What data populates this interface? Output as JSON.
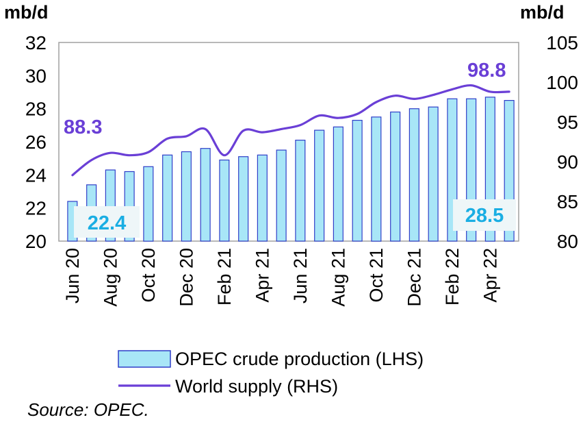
{
  "chart_data": {
    "type": "bar+line",
    "left_unit": "mb/d",
    "right_unit": "mb/d",
    "categories": [
      "Jun 20",
      "Jul 20",
      "Aug 20",
      "Sep 20",
      "Oct 20",
      "Nov 20",
      "Dec 20",
      "Jan 21",
      "Feb 21",
      "Mar 21",
      "Apr 21",
      "May 21",
      "Jun 21",
      "Jul 21",
      "Aug 21",
      "Sep 21",
      "Oct 21",
      "Nov 21",
      "Dec 21",
      "Jan 22",
      "Feb 22",
      "Mar 22",
      "Apr 22",
      "May 22"
    ],
    "x_tick_labels": [
      "Jun 20",
      "Aug 20",
      "Oct 20",
      "Dec 20",
      "Feb 21",
      "Apr 21",
      "Jun 21",
      "Aug 21",
      "Oct 21",
      "Dec 21",
      "Feb 22",
      "Apr 22"
    ],
    "series": [
      {
        "name": "OPEC crude production (LHS)",
        "type": "bar",
        "axis": "left",
        "values": [
          22.4,
          23.4,
          24.3,
          24.2,
          24.5,
          25.2,
          25.4,
          25.6,
          24.9,
          25.1,
          25.2,
          25.5,
          26.1,
          26.7,
          26.9,
          27.3,
          27.5,
          27.8,
          28.0,
          28.1,
          28.6,
          28.6,
          28.7,
          28.5
        ]
      },
      {
        "name": "World supply (RHS)",
        "type": "line",
        "axis": "right",
        "values": [
          88.3,
          90.2,
          91.1,
          90.8,
          91.2,
          92.9,
          93.2,
          94.1,
          90.8,
          93.9,
          93.7,
          94.1,
          94.6,
          95.8,
          95.5,
          96.0,
          97.5,
          98.3,
          97.9,
          98.4,
          99.1,
          99.6,
          98.8,
          98.8
        ]
      }
    ],
    "left_axis": {
      "ylim": [
        20,
        32
      ],
      "ticks": [
        "20",
        "22",
        "24",
        "26",
        "28",
        "30",
        "32"
      ]
    },
    "right_axis": {
      "ylim": [
        80,
        105
      ],
      "ticks": [
        "80",
        "85",
        "90",
        "95",
        "100",
        "105"
      ]
    },
    "annotations": {
      "line_start": "88.3",
      "line_end": "98.8",
      "bar_start": "22.4",
      "bar_end": "28.5"
    },
    "legend_placement": "bottom",
    "grid": false,
    "colors": {
      "bar_fill": "#a8e6f7",
      "bar_edge": "#2f3ec8",
      "line": "#6a3fd6",
      "line_label": "#6a3fd6",
      "bar_label": "#1aaee3",
      "plot_border": "#a0a0a0"
    }
  },
  "source": "Source: OPEC."
}
